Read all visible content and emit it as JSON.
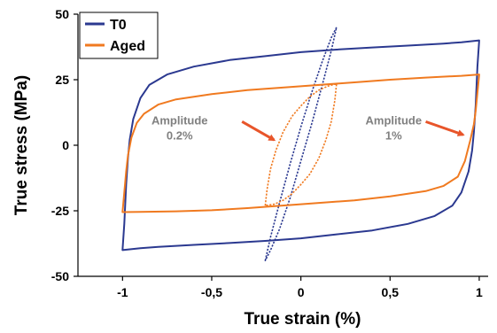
{
  "chart_data": {
    "type": "line",
    "xlabel": "True strain (%)",
    "ylabel": "True stress (MPa)",
    "xlim": [
      -1.25,
      1.05
    ],
    "ylim": [
      -50,
      50
    ],
    "x_ticks": [
      -1,
      -0.5,
      0,
      0.5,
      1
    ],
    "x_tick_labels": [
      "-1",
      "-0,5",
      "0",
      "0,5",
      "1"
    ],
    "y_ticks": [
      -50,
      -25,
      0,
      25,
      50
    ],
    "y_tick_labels": [
      "-50",
      "-25",
      "0",
      "25",
      "50"
    ],
    "grid": false,
    "legend_position": "top-left",
    "series": [
      {
        "name": "T0",
        "color": "#2b3990",
        "loops": [
          {
            "amplitude": "1%",
            "upper": [
              [
                -1.0,
                -40
              ],
              [
                -0.99,
                -30
              ],
              [
                -0.98,
                -15
              ],
              [
                -0.97,
                -5
              ],
              [
                -0.96,
                2
              ],
              [
                -0.94,
                10
              ],
              [
                -0.9,
                18
              ],
              [
                -0.85,
                23
              ],
              [
                -0.75,
                27
              ],
              [
                -0.6,
                30
              ],
              [
                -0.4,
                32.5
              ],
              [
                -0.2,
                34
              ],
              [
                0,
                35.5
              ],
              [
                0.2,
                36.5
              ],
              [
                0.4,
                37.3
              ],
              [
                0.6,
                38
              ],
              [
                0.8,
                38.8
              ],
              [
                0.9,
                39.3
              ],
              [
                1.0,
                40
              ]
            ],
            "lower": [
              [
                1.0,
                40
              ],
              [
                0.99,
                30
              ],
              [
                0.98,
                15
              ],
              [
                0.97,
                5
              ],
              [
                0.96,
                -2
              ],
              [
                0.94,
                -10
              ],
              [
                0.9,
                -18
              ],
              [
                0.85,
                -23
              ],
              [
                0.75,
                -27
              ],
              [
                0.6,
                -30
              ],
              [
                0.4,
                -32.5
              ],
              [
                0.2,
                -34
              ],
              [
                0,
                -35.5
              ],
              [
                -0.2,
                -36.5
              ],
              [
                -0.4,
                -37.3
              ],
              [
                -0.6,
                -38
              ],
              [
                -0.8,
                -38.8
              ],
              [
                -0.9,
                -39.3
              ],
              [
                -1.0,
                -40
              ]
            ]
          },
          {
            "amplitude": "0.2%",
            "upper": [
              [
                -0.2,
                -44
              ],
              [
                -0.17,
                -35
              ],
              [
                -0.12,
                -22
              ],
              [
                -0.06,
                -7
              ],
              [
                0,
                7
              ],
              [
                0.06,
                20
              ],
              [
                0.12,
                32
              ],
              [
                0.17,
                41
              ],
              [
                0.2,
                45
              ]
            ],
            "lower": [
              [
                0.2,
                45
              ],
              [
                0.17,
                36
              ],
              [
                0.12,
                23
              ],
              [
                0.06,
                8
              ],
              [
                0,
                -6
              ],
              [
                -0.06,
                -20
              ],
              [
                -0.12,
                -32
              ],
              [
                -0.17,
                -40
              ],
              [
                -0.2,
                -44
              ]
            ]
          }
        ]
      },
      {
        "name": "Aged",
        "color": "#f07a20",
        "loops": [
          {
            "amplitude": "1%",
            "upper": [
              [
                -1.0,
                -25.5
              ],
              [
                -0.99,
                -18
              ],
              [
                -0.98,
                -10
              ],
              [
                -0.97,
                -4
              ],
              [
                -0.95,
                3
              ],
              [
                -0.92,
                8.5
              ],
              [
                -0.88,
                12
              ],
              [
                -0.8,
                15.5
              ],
              [
                -0.7,
                17.5
              ],
              [
                -0.5,
                19.5
              ],
              [
                -0.3,
                21
              ],
              [
                0,
                22.5
              ],
              [
                0.3,
                24
              ],
              [
                0.5,
                25
              ],
              [
                0.7,
                25.8
              ],
              [
                0.9,
                26.5
              ],
              [
                1.0,
                27
              ]
            ],
            "lower": [
              [
                1.0,
                27
              ],
              [
                0.99,
                20
              ],
              [
                0.98,
                13
              ],
              [
                0.97,
                8
              ],
              [
                0.95,
                2
              ],
              [
                0.92,
                -6
              ],
              [
                0.88,
                -12
              ],
              [
                0.8,
                -15.5
              ],
              [
                0.7,
                -17.5
              ],
              [
                0.5,
                -19.5
              ],
              [
                0.3,
                -21
              ],
              [
                0,
                -22.5
              ],
              [
                -0.3,
                -24
              ],
              [
                -0.5,
                -24.8
              ],
              [
                -0.7,
                -25.2
              ],
              [
                -0.9,
                -25.4
              ],
              [
                -1.0,
                -25.5
              ]
            ]
          },
          {
            "amplitude": "0.2%",
            "upper": [
              [
                -0.2,
                -23
              ],
              [
                -0.19,
                -17
              ],
              [
                -0.17,
                -9
              ],
              [
                -0.14,
                -2
              ],
              [
                -0.1,
                5
              ],
              [
                -0.05,
                11
              ],
              [
                0,
                15
              ],
              [
                0.05,
                18.5
              ],
              [
                0.1,
                21
              ],
              [
                0.15,
                22.5
              ],
              [
                0.2,
                23.5
              ]
            ],
            "lower": [
              [
                0.2,
                23.5
              ],
              [
                0.19,
                17
              ],
              [
                0.17,
                9
              ],
              [
                0.14,
                2
              ],
              [
                0.1,
                -5
              ],
              [
                0.05,
                -11
              ],
              [
                0,
                -15
              ],
              [
                -0.05,
                -18.5
              ],
              [
                -0.1,
                -21
              ],
              [
                -0.15,
                -22.5
              ],
              [
                -0.2,
                -23
              ]
            ]
          }
        ]
      }
    ],
    "annotations": [
      {
        "lines": [
          "Amplitude",
          "0.2%"
        ],
        "anchor": [
          -0.68,
          8
        ],
        "arrow_tip": [
          -0.15,
          2
        ],
        "arrow_from": [
          -0.33,
          9
        ]
      },
      {
        "lines": [
          "Amplitude",
          "1%"
        ],
        "anchor": [
          0.52,
          8
        ],
        "arrow_tip": [
          0.91,
          4
        ],
        "arrow_from": [
          0.7,
          9
        ]
      }
    ],
    "arrow_color": "#e8552a"
  }
}
